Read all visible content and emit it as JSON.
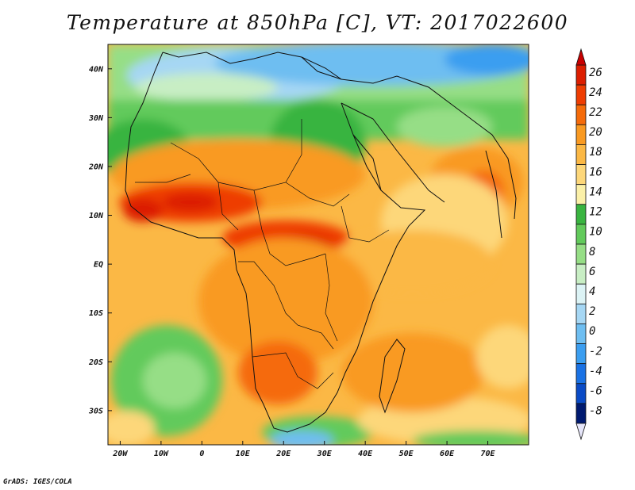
{
  "title": "Temperature at 850hPa [C], VT: 2017022600",
  "footer": "GrADS: IGES/COLA",
  "map": {
    "projection": "lat-lon",
    "lon_range": [
      -23,
      80
    ],
    "lat_range": [
      -37,
      45
    ],
    "x_ticks": [
      "20W",
      "10W",
      "0",
      "10E",
      "20E",
      "30E",
      "40E",
      "50E",
      "60E",
      "70E"
    ],
    "y_ticks": [
      "40N",
      "30N",
      "20N",
      "10N",
      "EQ",
      "10S",
      "20S",
      "30S"
    ],
    "field": "Temperature at 850hPa",
    "units": "C",
    "valid_time": "2017022600"
  },
  "colorbar": {
    "labels": [
      "26",
      "24",
      "22",
      "20",
      "18",
      "16",
      "14",
      "12",
      "10",
      "8",
      "6",
      "4",
      "2",
      "0",
      "-2",
      "-4",
      "-6",
      "-8"
    ],
    "colors": [
      "#dc1e00",
      "#ee3d02",
      "#f56b0a",
      "#f99a22",
      "#fbb845",
      "#fdd77a",
      "#fbf0a8",
      "#39b440",
      "#62ca5b",
      "#96de86",
      "#c8eec4",
      "#dcf3f5",
      "#a6d7f4",
      "#6ebef1",
      "#3b9ef0",
      "#1a72e4",
      "#0a4bc6",
      "#001a70"
    ],
    "over_color": "#c80000",
    "under_color": "#e6e6fa"
  }
}
